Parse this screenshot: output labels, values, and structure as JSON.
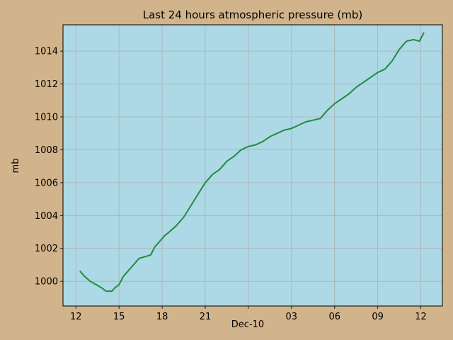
{
  "chart_data": {
    "type": "line",
    "title": "Last 24 hours atmospheric pressure (mb)",
    "xlabel": "Dec-10",
    "ylabel": "mb",
    "x_ticks": [
      {
        "hour": 12,
        "label": "12"
      },
      {
        "hour": 15,
        "label": "15"
      },
      {
        "hour": 18,
        "label": "18"
      },
      {
        "hour": 21,
        "label": "21"
      },
      {
        "hour": 24,
        "label": ""
      },
      {
        "hour": 27,
        "label": "03"
      },
      {
        "hour": 30,
        "label": "06"
      },
      {
        "hour": 33,
        "label": "09"
      },
      {
        "hour": 36,
        "label": "12"
      }
    ],
    "y_ticks": [
      1000,
      1002,
      1004,
      1006,
      1008,
      1010,
      1012,
      1014
    ],
    "xlim": [
      11.1,
      37.5
    ],
    "ylim": [
      998.5,
      1015.6
    ],
    "grid": true,
    "colors": {
      "figure_background": "#d2b48c",
      "plot_background": "#add8e6",
      "grid": "#b0b0b0",
      "line": "#228b3c"
    },
    "series": [
      {
        "x": [
          12.3,
          12.6,
          13.0,
          13.4,
          13.8,
          14.1,
          14.5,
          14.7,
          15.0,
          15.3,
          15.6,
          16.0,
          16.4,
          16.8,
          17.2,
          17.5,
          17.9,
          18.2,
          18.5,
          19.0,
          19.5,
          20.0,
          20.5,
          21.0,
          21.5,
          22.0,
          22.5,
          23.0,
          23.5,
          24.0,
          24.5,
          25.0,
          25.5,
          26.0,
          26.5,
          27.0,
          27.5,
          28.0,
          28.5,
          29.0,
          29.5,
          30.0,
          30.5,
          31.0,
          31.5,
          32.0,
          32.5,
          33.0,
          33.5,
          34.0,
          34.5,
          35.0,
          35.5,
          35.9,
          36.2
        ],
        "y": [
          1000.6,
          1000.3,
          1000.0,
          999.8,
          999.6,
          999.4,
          999.4,
          999.6,
          999.8,
          1000.3,
          1000.6,
          1001.0,
          1001.4,
          1001.5,
          1001.6,
          1002.1,
          1002.5,
          1002.8,
          1003.0,
          1003.4,
          1003.9,
          1004.6,
          1005.3,
          1006.0,
          1006.5,
          1006.8,
          1007.3,
          1007.6,
          1008.0,
          1008.2,
          1008.3,
          1008.5,
          1008.8,
          1009.0,
          1009.2,
          1009.3,
          1009.5,
          1009.7,
          1009.8,
          1009.9,
          1010.4,
          1010.8,
          1011.1,
          1011.4,
          1011.8,
          1012.1,
          1012.4,
          1012.7,
          1012.9,
          1013.4,
          1014.1,
          1014.6,
          1014.7,
          1014.6,
          1015.1
        ]
      }
    ]
  }
}
